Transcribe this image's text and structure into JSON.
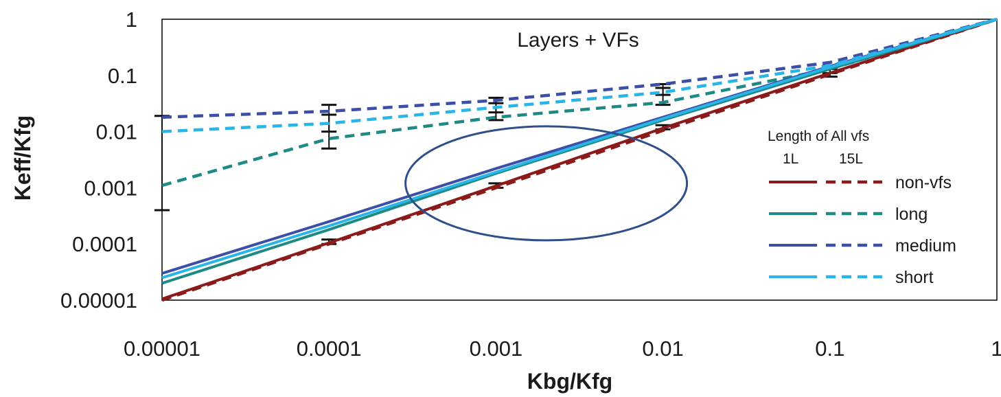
{
  "chart_data": {
    "type": "line",
    "title": "Layers + VFs",
    "xlabel": "Kbg/Kfg",
    "ylabel": "Keff/Kfg",
    "x_scale": "log",
    "y_scale": "log",
    "xlim": [
      1e-05,
      1
    ],
    "ylim": [
      1e-05,
      1
    ],
    "x_ticks": [
      "0.00001",
      "0.0001",
      "0.001",
      "0.01",
      "0.1",
      "1"
    ],
    "y_ticks": [
      "0.00001",
      "0.0001",
      "0.001",
      "0.01",
      "0.1",
      "1"
    ],
    "grid": false,
    "legend": {
      "title": "Length of All vfs",
      "column_labels": [
        "1L",
        "15L"
      ],
      "entries": [
        "non-vfs",
        "long",
        "medium",
        "short"
      ],
      "placement": "right"
    },
    "x": [
      1e-05,
      0.0001,
      0.001,
      0.01,
      0.1,
      1
    ],
    "series": [
      {
        "name": "non-vfs",
        "layers": "1L",
        "style": "solid",
        "color": "#8B1A1A",
        "values": [
          1.05e-05,
          0.000105,
          0.00108,
          0.0115,
          0.11,
          1
        ]
      },
      {
        "name": "non-vfs",
        "layers": "15L",
        "style": "dashed",
        "color": "#8B1A1A",
        "values": [
          1e-05,
          0.0001,
          0.001,
          0.0105,
          0.105,
          1
        ]
      },
      {
        "name": "long",
        "layers": "1L",
        "style": "solid",
        "color": "#1F8A85",
        "values": [
          2e-05,
          0.00018,
          0.0018,
          0.016,
          0.13,
          1
        ]
      },
      {
        "name": "long",
        "layers": "15L",
        "style": "dashed",
        "color": "#1F8A85",
        "values": [
          0.0011,
          0.0075,
          0.018,
          0.033,
          0.13,
          1
        ]
      },
      {
        "name": "medium",
        "layers": "1L",
        "style": "solid",
        "color": "#3B4FA8",
        "values": [
          3e-05,
          0.00025,
          0.0022,
          0.018,
          0.145,
          1
        ]
      },
      {
        "name": "medium",
        "layers": "15L",
        "style": "dashed",
        "color": "#3B4FA8",
        "values": [
          0.018,
          0.023,
          0.036,
          0.07,
          0.17,
          1
        ]
      },
      {
        "name": "short",
        "layers": "1L",
        "style": "solid",
        "color": "#29B5E8",
        "values": [
          2.5e-05,
          0.00021,
          0.0019,
          0.017,
          0.14,
          1
        ]
      },
      {
        "name": "short",
        "layers": "15L",
        "style": "dashed",
        "color": "#29B5E8",
        "values": [
          0.01,
          0.014,
          0.027,
          0.05,
          0.15,
          1
        ]
      }
    ],
    "error_bars": [
      {
        "x": 1e-05,
        "y_low": 0.0004,
        "y_high": 0.019
      },
      {
        "x": 0.0001,
        "y_low": 0.005,
        "y_high": 0.03
      },
      {
        "x": 0.0001,
        "y_low": 0.01,
        "y_high": 0.02
      },
      {
        "x": 0.0001,
        "y_low": 0.0001,
        "y_high": 0.00012
      },
      {
        "x": 0.001,
        "y_low": 0.016,
        "y_high": 0.04
      },
      {
        "x": 0.001,
        "y_low": 0.022,
        "y_high": 0.032
      },
      {
        "x": 0.001,
        "y_low": 0.001,
        "y_high": 0.0012
      },
      {
        "x": 0.01,
        "y_low": 0.03,
        "y_high": 0.07
      },
      {
        "x": 0.01,
        "y_low": 0.045,
        "y_high": 0.06
      },
      {
        "x": 0.01,
        "y_low": 0.011,
        "y_high": 0.013
      },
      {
        "x": 0.1,
        "y_low": 0.095,
        "y_high": 0.15
      },
      {
        "x": 0.1,
        "y_low": 0.11,
        "y_high": 0.13
      }
    ],
    "annotation": {
      "shape": "ellipse",
      "color": "#2F4F8A",
      "center_x": 0.002,
      "center_y": 0.0012
    }
  }
}
